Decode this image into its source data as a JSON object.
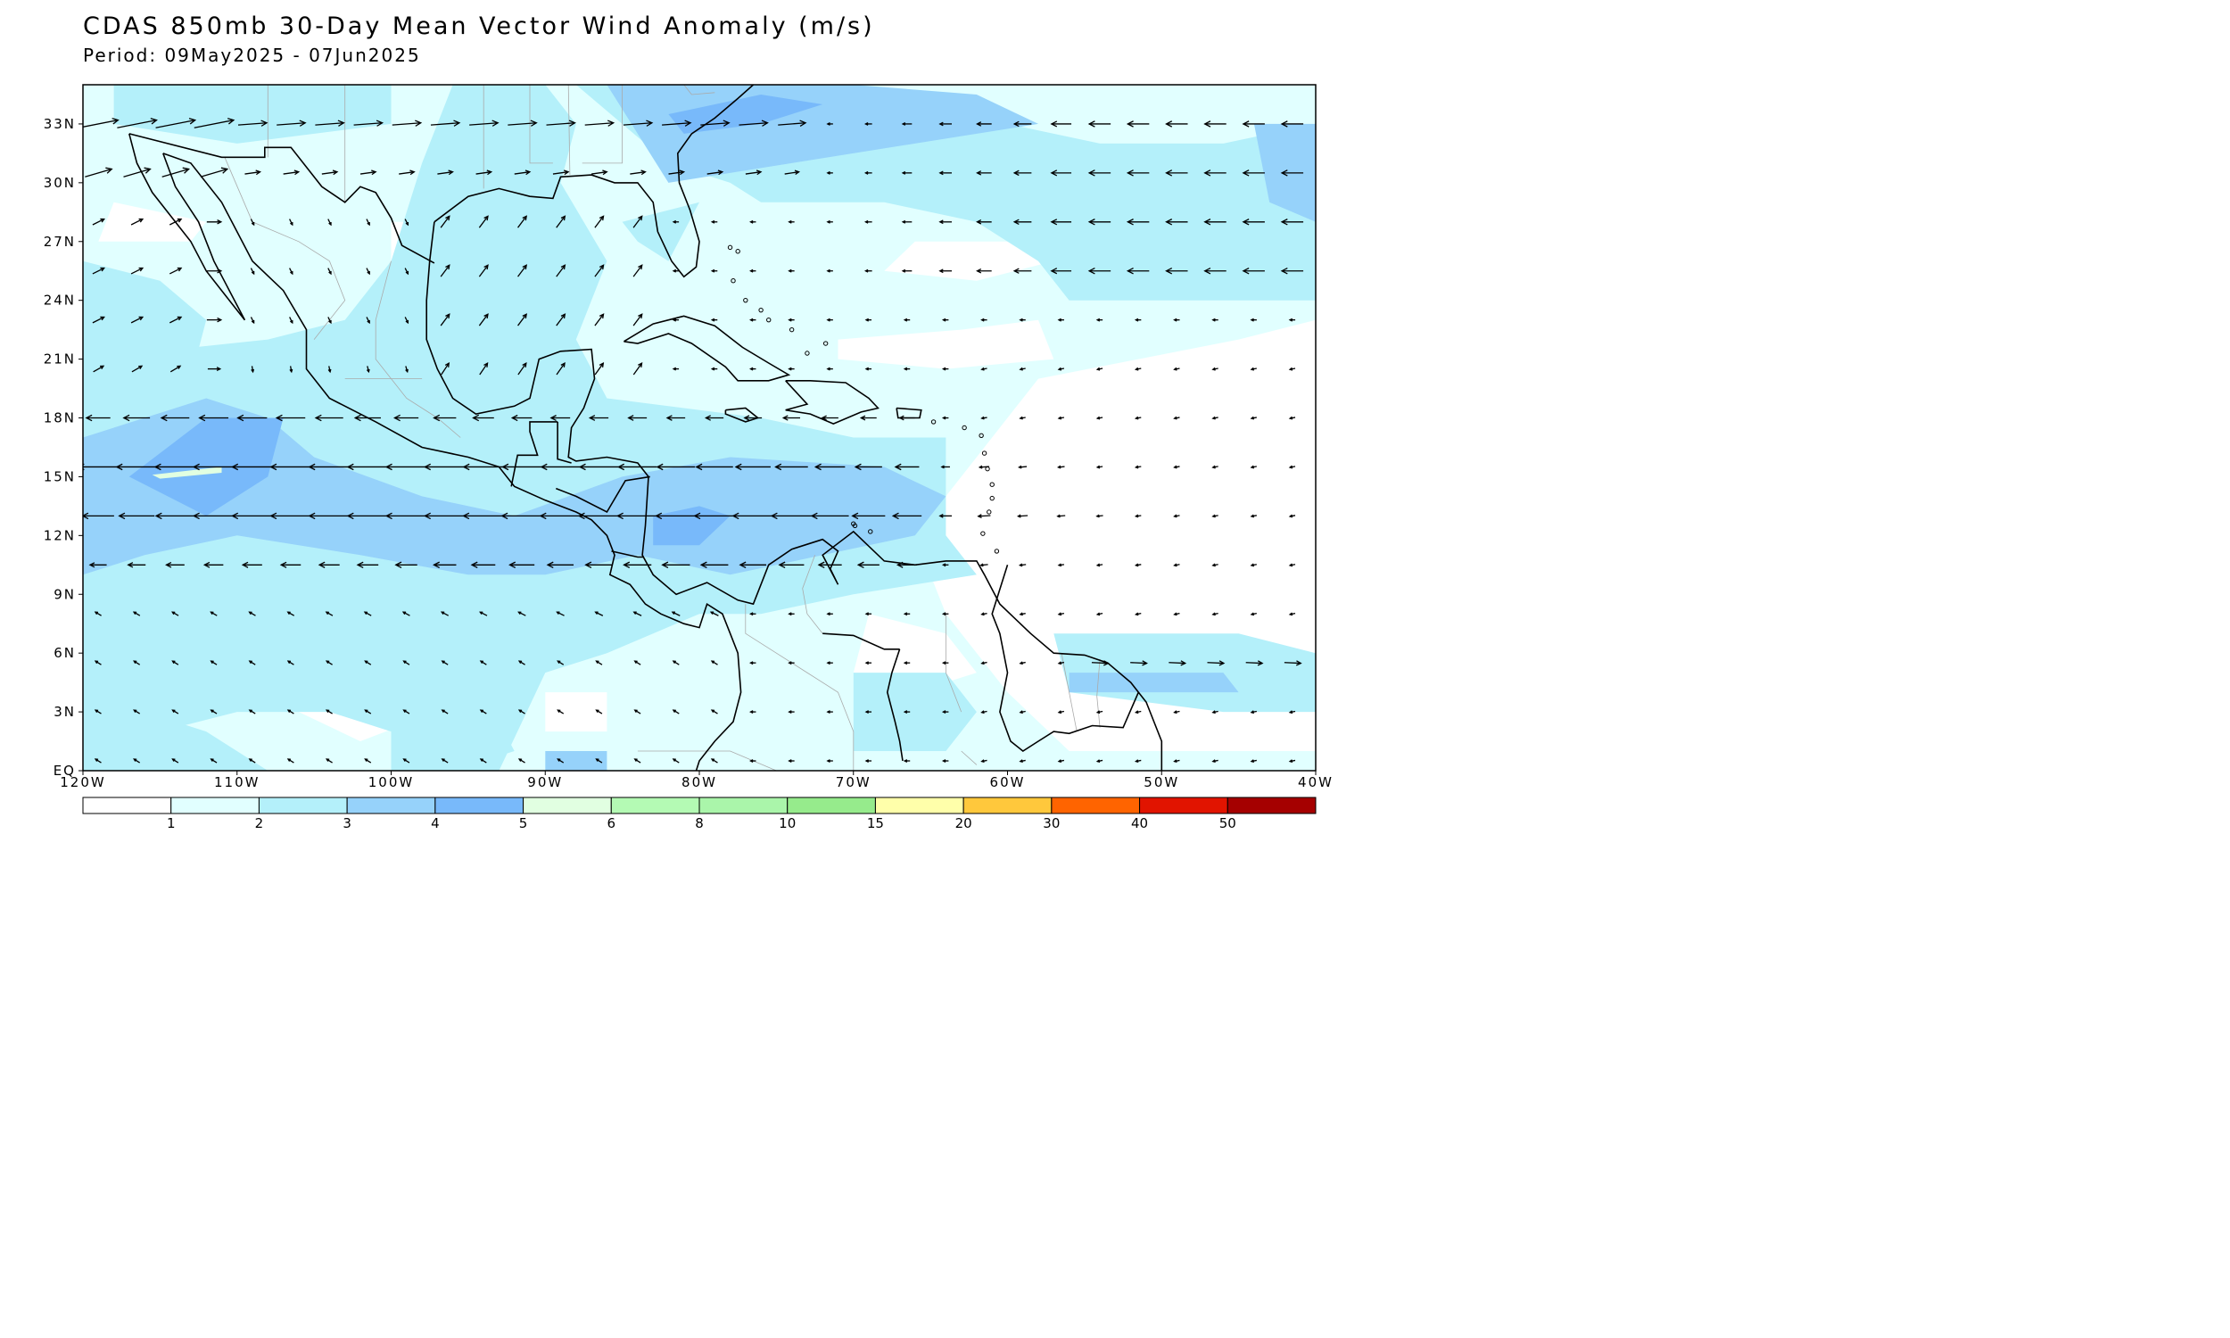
{
  "title": "CDAS 850mb 30-Day Mean Vector Wind Anomaly (m/s)",
  "subtitle": "Period: 09May2025 - 07Jun2025",
  "map": {
    "lon_range": [
      -120,
      -40
    ],
    "lat_range": [
      0,
      35
    ],
    "lon_ticks": [
      "120W",
      "110W",
      "100W",
      "90W",
      "80W",
      "70W",
      "60W",
      "50W",
      "40W"
    ],
    "lat_ticks": [
      "EQ",
      "3N",
      "6N",
      "9N",
      "12N",
      "15N",
      "18N",
      "21N",
      "24N",
      "27N",
      "30N",
      "33N"
    ],
    "land_outline_color": "#000000",
    "border_color": "#aaaaaa"
  },
  "legend": {
    "colors": [
      "#ffffff",
      "#e1ffff",
      "#b4f0fa",
      "#96d2fa",
      "#78b9fa",
      "#e1ffe1",
      "#b4fab4",
      "#aaf5aa",
      "#96eb8c",
      "#ffffaa",
      "#ffc83c",
      "#ff6400",
      "#e11400",
      "#a50000"
    ],
    "labels": [
      "1",
      "2",
      "3",
      "4",
      "5",
      "6",
      "8",
      "10",
      "15",
      "20",
      "30",
      "40",
      "50"
    ]
  },
  "chart_data": {
    "type": "vector-field",
    "title": "CDAS 850mb 30-Day Mean Vector Wind Anomaly (m/s)",
    "subtitle": "Period: 09May2025 - 07Jun2025",
    "units": "m/s",
    "lon_range": [
      -120,
      -40
    ],
    "lat_range": [
      0,
      35
    ],
    "shaded_regions": [
      {
        "level": "4-5",
        "center": [
          -112,
          15
        ],
        "desc": "easterly jet core off Mexico"
      },
      {
        "level": "4-5",
        "center": [
          -80,
          12.5
        ],
        "desc": "Caribbean low-level jet"
      },
      {
        "level": "4-5",
        "center": [
          -83,
          33
        ],
        "desc": "westerly anomaly off SE US"
      },
      {
        "level": "3-4",
        "center": [
          -43,
          30
        ],
        "desc": "easterly anomaly central Atlantic"
      }
    ]
  }
}
